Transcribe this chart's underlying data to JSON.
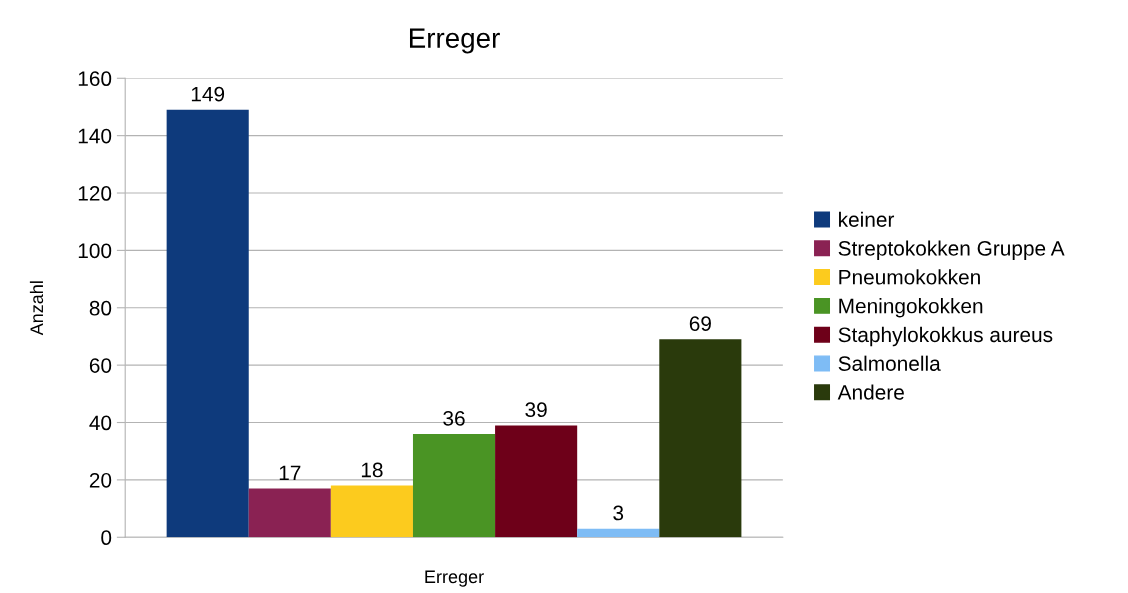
{
  "chart_data": {
    "type": "bar",
    "title": "Erreger",
    "xlabel": "Erreger",
    "ylabel": "Anzahl",
    "categories": [
      null
    ],
    "series": [
      {
        "name": "keiner",
        "color": "#0e3a7c",
        "values": [
          149
        ]
      },
      {
        "name": "Streptokokken Gruppe A",
        "color": "#8a2253",
        "values": [
          17
        ]
      },
      {
        "name": "Pneumokokken",
        "color": "#fccb1e",
        "values": [
          18
        ]
      },
      {
        "name": "Meningokokken",
        "color": "#4a9424",
        "values": [
          36
        ]
      },
      {
        "name": "Staphylokokkus aureus",
        "color": "#6e0019",
        "values": [
          39
        ]
      },
      {
        "name": "Salmonella",
        "color": "#7ebcf5",
        "values": [
          3
        ]
      },
      {
        "name": "Andere",
        "color": "#2a3a0c",
        "values": [
          69
        ]
      }
    ],
    "ylim": [
      0,
      160
    ],
    "yticks": [
      0,
      20,
      40,
      60,
      80,
      100,
      120,
      140,
      160
    ],
    "grid": "y",
    "legend": "right",
    "data_labels": true
  }
}
